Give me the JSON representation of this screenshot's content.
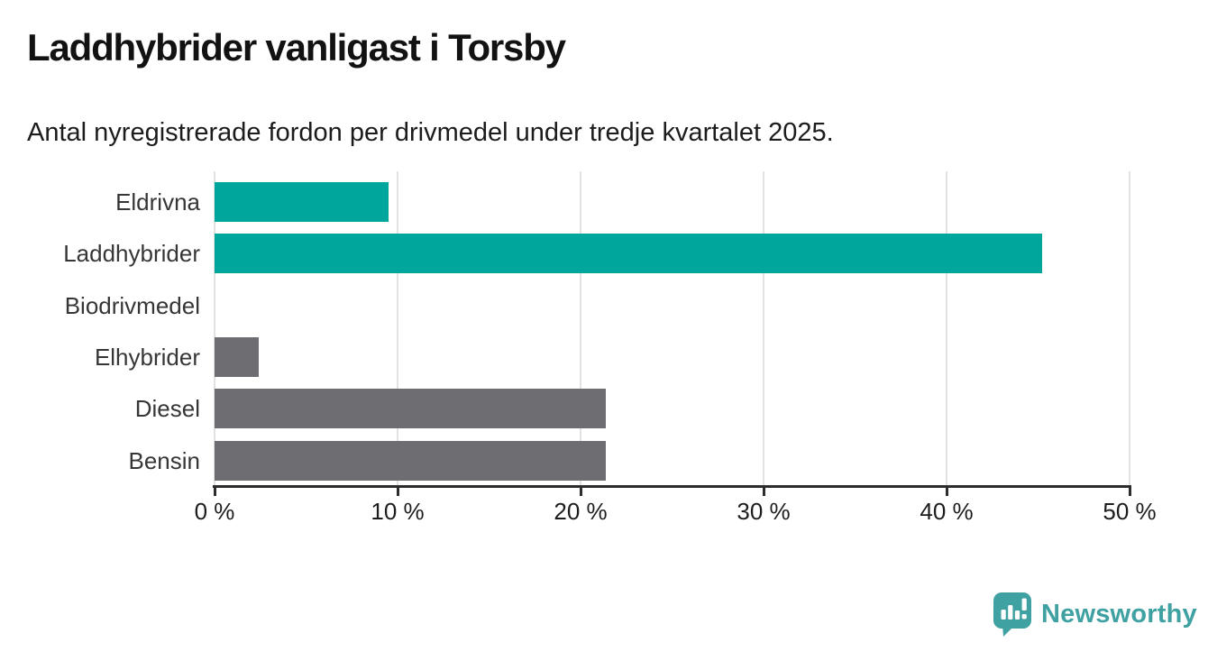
{
  "header": {
    "title": "Laddhybrider vanligast i Torsby",
    "subtitle": "Antal nyregistrerade fordon per drivmedel under tredje kvartalet 2025."
  },
  "chart_data": {
    "type": "bar",
    "orientation": "horizontal",
    "title": "Laddhybrider vanligast i Torsby",
    "subtitle": "Antal nyregistrerade fordon per drivmedel under tredje kvartalet 2025.",
    "categories": [
      "Eldrivna",
      "Laddhybrider",
      "Biodrivmedel",
      "Elhybrider",
      "Diesel",
      "Bensin"
    ],
    "values": [
      9.5,
      45.2,
      0,
      2.4,
      21.4,
      21.4
    ],
    "unit": "%",
    "bar_colors": [
      "#00a59b",
      "#00a59b",
      "#6d6d72",
      "#6d6d72",
      "#6d6d72",
      "#6d6d72"
    ],
    "accent_color": "#00a59b",
    "neutral_color": "#6d6d72",
    "xlabel": "",
    "ylabel": "",
    "xlim": [
      0,
      50
    ],
    "x_ticks": [
      0,
      10,
      20,
      30,
      40,
      50
    ],
    "x_tick_labels": [
      "0 %",
      "10 %",
      "20 %",
      "30 %",
      "40 %",
      "50 %"
    ],
    "grid": "vertical",
    "gridline_color": "#e2e2e2",
    "axis_color": "#2d2d2d",
    "legend": "none"
  },
  "branding": {
    "logo_text": "Newsworthy",
    "logo_icon": "newsworthy-speech-bubble-bar-chart",
    "color": "#3fa1a1"
  }
}
